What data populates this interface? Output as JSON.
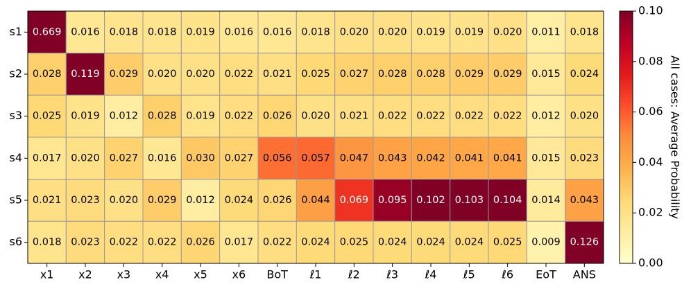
{
  "chart_data": {
    "type": "heatmap",
    "rows": [
      "s1",
      "s2",
      "s3",
      "s4",
      "s5",
      "s6"
    ],
    "columns": [
      "x1",
      "x2",
      "x3",
      "x4",
      "x5",
      "x6",
      "BoT",
      "ℓ1",
      "ℓ2",
      "ℓ3",
      "ℓ4",
      "ℓ5",
      "ℓ6",
      "EoT",
      "ANS"
    ],
    "values": [
      [
        0.669,
        0.016,
        0.018,
        0.018,
        0.019,
        0.016,
        0.016,
        0.018,
        0.02,
        0.02,
        0.019,
        0.019,
        0.02,
        0.011,
        0.018
      ],
      [
        0.028,
        0.119,
        0.029,
        0.02,
        0.02,
        0.022,
        0.021,
        0.025,
        0.027,
        0.028,
        0.028,
        0.029,
        0.029,
        0.015,
        0.024
      ],
      [
        0.025,
        0.019,
        0.012,
        0.028,
        0.019,
        0.022,
        0.026,
        0.02,
        0.021,
        0.022,
        0.022,
        0.022,
        0.022,
        0.012,
        0.02
      ],
      [
        0.017,
        0.02,
        0.027,
        0.016,
        0.03,
        0.027,
        0.056,
        0.057,
        0.047,
        0.043,
        0.042,
        0.041,
        0.041,
        0.015,
        0.023
      ],
      [
        0.021,
        0.023,
        0.02,
        0.029,
        0.012,
        0.024,
        0.026,
        0.044,
        0.069,
        0.095,
        0.102,
        0.103,
        0.104,
        0.014,
        0.043
      ],
      [
        0.018,
        0.023,
        0.022,
        0.022,
        0.026,
        0.017,
        0.022,
        0.024,
        0.025,
        0.024,
        0.024,
        0.024,
        0.025,
        0.009,
        0.126
      ]
    ],
    "value_labels": [
      [
        "0.669",
        "0.016",
        "0.018",
        "0.018",
        "0.019",
        "0.016",
        "0.016",
        "0.018",
        "0.020",
        "0.020",
        "0.019",
        "0.019",
        "0.020",
        "0.011",
        "0.018"
      ],
      [
        "0.028",
        "0.119",
        "0.029",
        "0.020",
        "0.020",
        "0.022",
        "0.021",
        "0.025",
        "0.027",
        "0.028",
        "0.028",
        "0.029",
        "0.029",
        "0.015",
        "0.024"
      ],
      [
        "0.025",
        "0.019",
        "0.012",
        "0.028",
        "0.019",
        "0.022",
        "0.026",
        "0.020",
        "0.021",
        "0.022",
        "0.022",
        "0.022",
        "0.022",
        "0.012",
        "0.020"
      ],
      [
        "0.017",
        "0.020",
        "0.027",
        "0.016",
        "0.030",
        "0.027",
        "0.056",
        "0.057",
        "0.047",
        "0.043",
        "0.042",
        "0.041",
        "0.041",
        "0.015",
        "0.023"
      ],
      [
        "0.021",
        "0.023",
        "0.020",
        "0.029",
        "0.012",
        "0.024",
        "0.026",
        "0.044",
        "0.069",
        "0.095",
        "0.102",
        "0.103",
        "0.104",
        "0.014",
        "0.043"
      ],
      [
        "0.018",
        "0.023",
        "0.022",
        "0.022",
        "0.026",
        "0.017",
        "0.022",
        "0.024",
        "0.025",
        "0.024",
        "0.024",
        "0.024",
        "0.025",
        "0.009",
        "0.126"
      ]
    ],
    "colormap": "YlOrRd",
    "clim": [
      0,
      0.1
    ],
    "cticks": [
      {
        "value": 0,
        "label": "0.00"
      },
      {
        "value": 0.02,
        "label": "0.02"
      },
      {
        "value": 0.04,
        "label": "0.04"
      },
      {
        "value": 0.06,
        "label": "0.06"
      },
      {
        "value": 0.08,
        "label": "0.08"
      },
      {
        "value": 0.1,
        "label": "0.10"
      }
    ],
    "colorbar_label": "All cases: Average Probability"
  }
}
